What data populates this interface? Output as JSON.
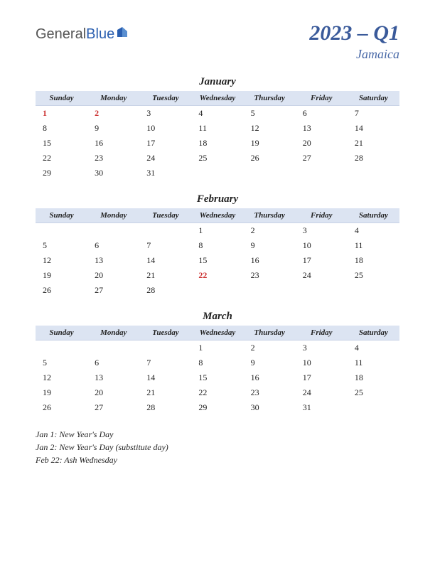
{
  "logo": {
    "part1": "General",
    "part2": "Blue"
  },
  "title": {
    "main": "2023 – Q1",
    "sub": "Jamaica"
  },
  "colors": {
    "header_bg": "#dce4f2",
    "holiday_text": "#cc3333",
    "title_color": "#3a5a9a",
    "sub_color": "#4a6aa8",
    "logo_blue": "#2b5fb0"
  },
  "day_headers": [
    "Sunday",
    "Monday",
    "Tuesday",
    "Wednesday",
    "Thursday",
    "Friday",
    "Saturday"
  ],
  "months": [
    {
      "name": "January",
      "weeks": [
        [
          {
            "d": "1",
            "h": true
          },
          {
            "d": "2",
            "h": true
          },
          {
            "d": "3"
          },
          {
            "d": "4"
          },
          {
            "d": "5"
          },
          {
            "d": "6"
          },
          {
            "d": "7"
          }
        ],
        [
          {
            "d": "8"
          },
          {
            "d": "9"
          },
          {
            "d": "10"
          },
          {
            "d": "11"
          },
          {
            "d": "12"
          },
          {
            "d": "13"
          },
          {
            "d": "14"
          }
        ],
        [
          {
            "d": "15"
          },
          {
            "d": "16"
          },
          {
            "d": "17"
          },
          {
            "d": "18"
          },
          {
            "d": "19"
          },
          {
            "d": "20"
          },
          {
            "d": "21"
          }
        ],
        [
          {
            "d": "22"
          },
          {
            "d": "23"
          },
          {
            "d": "24"
          },
          {
            "d": "25"
          },
          {
            "d": "26"
          },
          {
            "d": "27"
          },
          {
            "d": "28"
          }
        ],
        [
          {
            "d": "29"
          },
          {
            "d": "30"
          },
          {
            "d": "31"
          },
          {
            "d": ""
          },
          {
            "d": ""
          },
          {
            "d": ""
          },
          {
            "d": ""
          }
        ]
      ]
    },
    {
      "name": "February",
      "weeks": [
        [
          {
            "d": ""
          },
          {
            "d": ""
          },
          {
            "d": ""
          },
          {
            "d": "1"
          },
          {
            "d": "2"
          },
          {
            "d": "3"
          },
          {
            "d": "4"
          }
        ],
        [
          {
            "d": "5"
          },
          {
            "d": "6"
          },
          {
            "d": "7"
          },
          {
            "d": "8"
          },
          {
            "d": "9"
          },
          {
            "d": "10"
          },
          {
            "d": "11"
          }
        ],
        [
          {
            "d": "12"
          },
          {
            "d": "13"
          },
          {
            "d": "14"
          },
          {
            "d": "15"
          },
          {
            "d": "16"
          },
          {
            "d": "17"
          },
          {
            "d": "18"
          }
        ],
        [
          {
            "d": "19"
          },
          {
            "d": "20"
          },
          {
            "d": "21"
          },
          {
            "d": "22",
            "h": true
          },
          {
            "d": "23"
          },
          {
            "d": "24"
          },
          {
            "d": "25"
          }
        ],
        [
          {
            "d": "26"
          },
          {
            "d": "27"
          },
          {
            "d": "28"
          },
          {
            "d": ""
          },
          {
            "d": ""
          },
          {
            "d": ""
          },
          {
            "d": ""
          }
        ]
      ]
    },
    {
      "name": "March",
      "weeks": [
        [
          {
            "d": ""
          },
          {
            "d": ""
          },
          {
            "d": ""
          },
          {
            "d": "1"
          },
          {
            "d": "2"
          },
          {
            "d": "3"
          },
          {
            "d": "4"
          }
        ],
        [
          {
            "d": "5"
          },
          {
            "d": "6"
          },
          {
            "d": "7"
          },
          {
            "d": "8"
          },
          {
            "d": "9"
          },
          {
            "d": "10"
          },
          {
            "d": "11"
          }
        ],
        [
          {
            "d": "12"
          },
          {
            "d": "13"
          },
          {
            "d": "14"
          },
          {
            "d": "15"
          },
          {
            "d": "16"
          },
          {
            "d": "17"
          },
          {
            "d": "18"
          }
        ],
        [
          {
            "d": "19"
          },
          {
            "d": "20"
          },
          {
            "d": "21"
          },
          {
            "d": "22"
          },
          {
            "d": "23"
          },
          {
            "d": "24"
          },
          {
            "d": "25"
          }
        ],
        [
          {
            "d": "26"
          },
          {
            "d": "27"
          },
          {
            "d": "28"
          },
          {
            "d": "29"
          },
          {
            "d": "30"
          },
          {
            "d": "31"
          },
          {
            "d": ""
          }
        ]
      ]
    }
  ],
  "holiday_list": [
    "Jan 1: New Year's Day",
    "Jan 2: New Year's Day (substitute day)",
    "Feb 22: Ash Wednesday"
  ]
}
